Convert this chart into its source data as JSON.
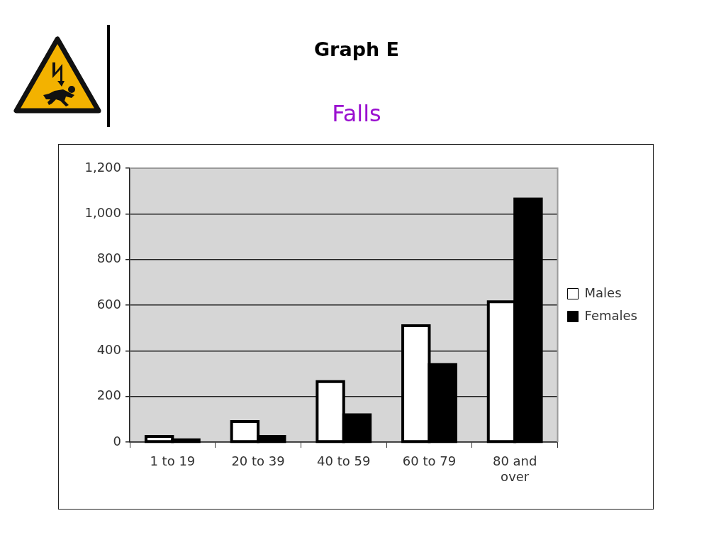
{
  "chart_data": {
    "type": "bar",
    "title": "Graph E",
    "subtitle": "Falls",
    "categories": [
      "1 to 19",
      "20 to 39",
      "40 to 59",
      "60 to 79",
      "80 and over"
    ],
    "series": [
      {
        "name": "Males",
        "color": "#ffffff",
        "values": [
          25,
          90,
          265,
          510,
          615
        ]
      },
      {
        "name": "Females",
        "color": "#000000",
        "values": [
          10,
          25,
          120,
          340,
          1065
        ]
      }
    ],
    "ylim": [
      0,
      1200
    ],
    "yticks": [
      0,
      200,
      400,
      600,
      800,
      {
        "value": 1000,
        "label": "1,000"
      },
      {
        "value": 1200,
        "label": "1,200"
      }
    ],
    "grid": "y",
    "legend": "right"
  }
}
